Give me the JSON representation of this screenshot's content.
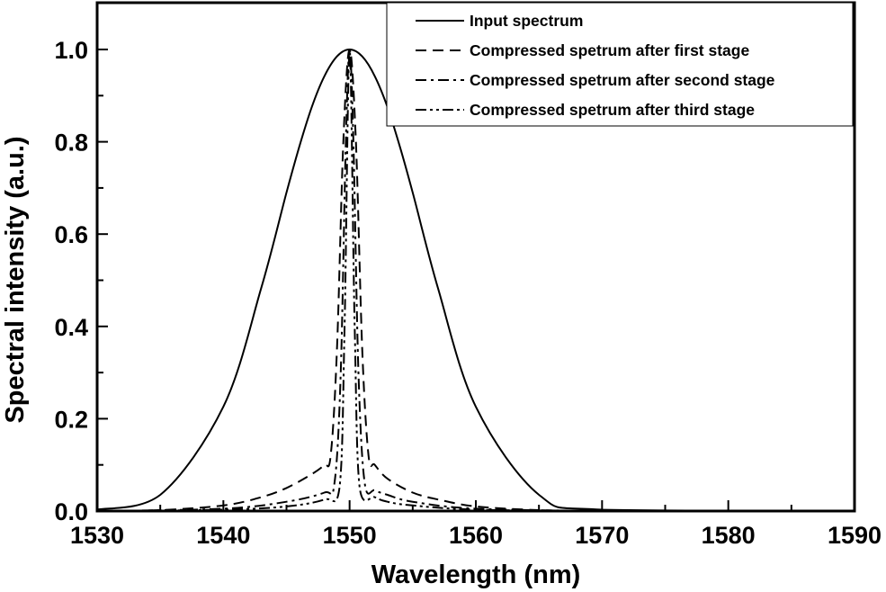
{
  "chart_data": {
    "type": "line",
    "title": "",
    "xlabel": "Wavelength (nm)",
    "ylabel": "Spectral intensity (a.u.)",
    "xlim": [
      1530,
      1590
    ],
    "ylim": [
      0,
      1.08
    ],
    "xticks": [
      "1530",
      "1540",
      "1550",
      "1560",
      "1570",
      "1580",
      "1590"
    ],
    "yticks": [
      "0.0",
      "0.2",
      "0.4",
      "0.6",
      "0.8",
      "1.0"
    ],
    "grid": false,
    "legend_position": "top-right",
    "series": [
      {
        "name": "Input spectrum",
        "style": "solid",
        "x": [
          1530,
          1535,
          1540,
          1543,
          1545,
          1546,
          1547,
          1548,
          1549,
          1550,
          1551,
          1552,
          1553,
          1554,
          1555,
          1557,
          1560,
          1565,
          1570,
          1590
        ],
        "y": [
          0.003,
          0.035,
          0.226,
          0.483,
          0.69,
          0.788,
          0.875,
          0.942,
          0.985,
          1.0,
          0.985,
          0.942,
          0.875,
          0.788,
          0.69,
          0.483,
          0.226,
          0.035,
          0.003,
          0.0
        ]
      },
      {
        "name": "Compressed spetrum after first stage",
        "style": "dash",
        "x": [
          1530,
          1535,
          1540,
          1543,
          1545,
          1547,
          1548,
          1548.5,
          1549,
          1549.5,
          1550,
          1550.5,
          1551,
          1551.5,
          1552,
          1553,
          1555,
          1557,
          1560,
          1565,
          1570
        ],
        "y": [
          0.0,
          0.002,
          0.012,
          0.03,
          0.05,
          0.08,
          0.1,
          0.12,
          0.35,
          0.8,
          1.0,
          0.8,
          0.35,
          0.12,
          0.1,
          0.07,
          0.04,
          0.025,
          0.01,
          0.002,
          0.0
        ]
      },
      {
        "name": "Compressed spetrum after second stage",
        "style": "dashdot",
        "x": [
          1530,
          1540,
          1545,
          1548,
          1548.8,
          1549.3,
          1549.7,
          1550,
          1550.3,
          1550.7,
          1551.2,
          1552,
          1553,
          1555,
          1560,
          1570
        ],
        "y": [
          0.0,
          0.005,
          0.02,
          0.04,
          0.06,
          0.3,
          0.8,
          1.0,
          0.8,
          0.3,
          0.06,
          0.045,
          0.035,
          0.02,
          0.005,
          0.0
        ]
      },
      {
        "name": "Compressed spetrum after third stage",
        "style": "dashdotdot",
        "x": [
          1530,
          1540,
          1545,
          1548,
          1549.2,
          1549.6,
          1550,
          1550.4,
          1550.8,
          1552,
          1553,
          1555,
          1560,
          1570
        ],
        "y": [
          0.0,
          0.003,
          0.01,
          0.025,
          0.05,
          0.4,
          1.0,
          0.4,
          0.05,
          0.03,
          0.02,
          0.012,
          0.003,
          0.0
        ]
      }
    ]
  }
}
